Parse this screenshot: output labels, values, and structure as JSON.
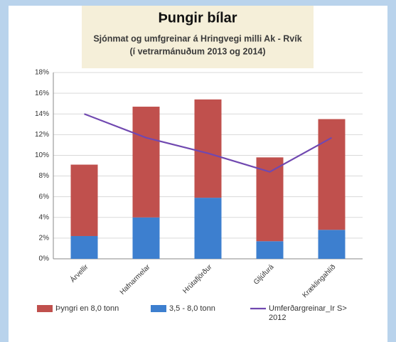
{
  "chart_data": {
    "type": "bar",
    "title": "Þungir bílar",
    "subtitle": [
      "Sjónmat og umfgreinar á Hringvegi milli Ak - Rvík",
      "(í vetrarmánuðum 2013 og 2014)"
    ],
    "categories": [
      "Árvellir",
      "Hafnarmelar",
      "Hrútafjörður",
      "Gljúfurá",
      "Kræklingahlíð"
    ],
    "series": [
      {
        "name": "Þyngri en 8,0 tonn",
        "color": "#c0504d",
        "values": [
          6.9,
          10.7,
          9.5,
          8.1,
          10.7
        ]
      },
      {
        "name": "3,5 - 8,0 tonn",
        "color": "#3d7fcf",
        "values": [
          2.2,
          4.0,
          5.9,
          1.7,
          2.8
        ]
      },
      {
        "name": "Umferðargreinar_Ir S> 2012",
        "color": "#7048b0",
        "type": "line",
        "values": [
          14.0,
          11.7,
          10.2,
          8.4,
          11.7
        ]
      }
    ],
    "ylim": [
      0,
      18
    ],
    "yticks": [
      {
        "value": 0,
        "label": "0%"
      },
      {
        "value": 2,
        "label": "2%"
      },
      {
        "value": 4,
        "label": "4%"
      },
      {
        "value": 6,
        "label": "6%"
      },
      {
        "value": 8,
        "label": "8%"
      },
      {
        "value": 10,
        "label": "10%"
      },
      {
        "value": 12,
        "label": "12%"
      },
      {
        "value": 14,
        "label": "14%"
      },
      {
        "value": 16,
        "label": "16%"
      },
      {
        "value": 18,
        "label": "18%"
      }
    ],
    "grid": true
  }
}
